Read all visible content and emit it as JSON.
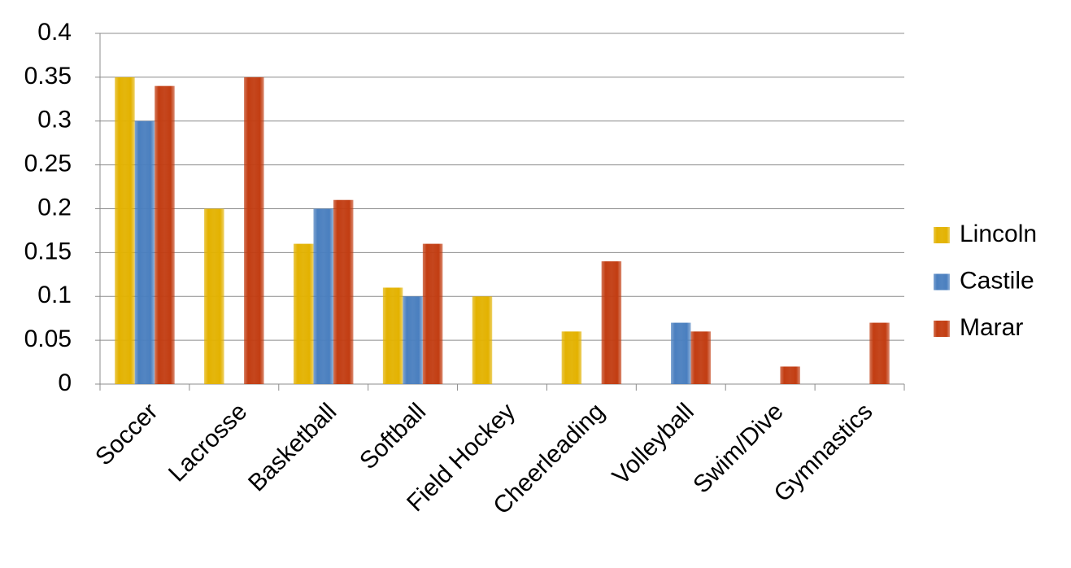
{
  "chart_data": {
    "type": "bar",
    "categories": [
      "Soccer",
      "Lacrosse",
      "Basketball",
      "Softball",
      "Field Hockey",
      "Cheerleading",
      "Volleyball",
      "Swim/Dive",
      "Gymnastics"
    ],
    "series": [
      {
        "name": "Lincoln",
        "color": "#e3b200",
        "values": [
          0.35,
          0.2,
          0.16,
          0.11,
          0.1,
          0.06,
          0,
          0,
          0
        ]
      },
      {
        "name": "Castile",
        "color": "#4a7fbf",
        "values": [
          0.3,
          0,
          0.2,
          0.1,
          0,
          0,
          0.07,
          0,
          0
        ]
      },
      {
        "name": "Marar",
        "color": "#c23d12",
        "values": [
          0.34,
          0.35,
          0.21,
          0.16,
          0,
          0.14,
          0.06,
          0.02,
          0.07
        ]
      }
    ],
    "ylim": [
      0,
      0.4
    ],
    "yticks": [
      0,
      0.05,
      0.1,
      0.15,
      0.2,
      0.25,
      0.3,
      0.35,
      0.4
    ],
    "grid": true,
    "legend": "right"
  }
}
